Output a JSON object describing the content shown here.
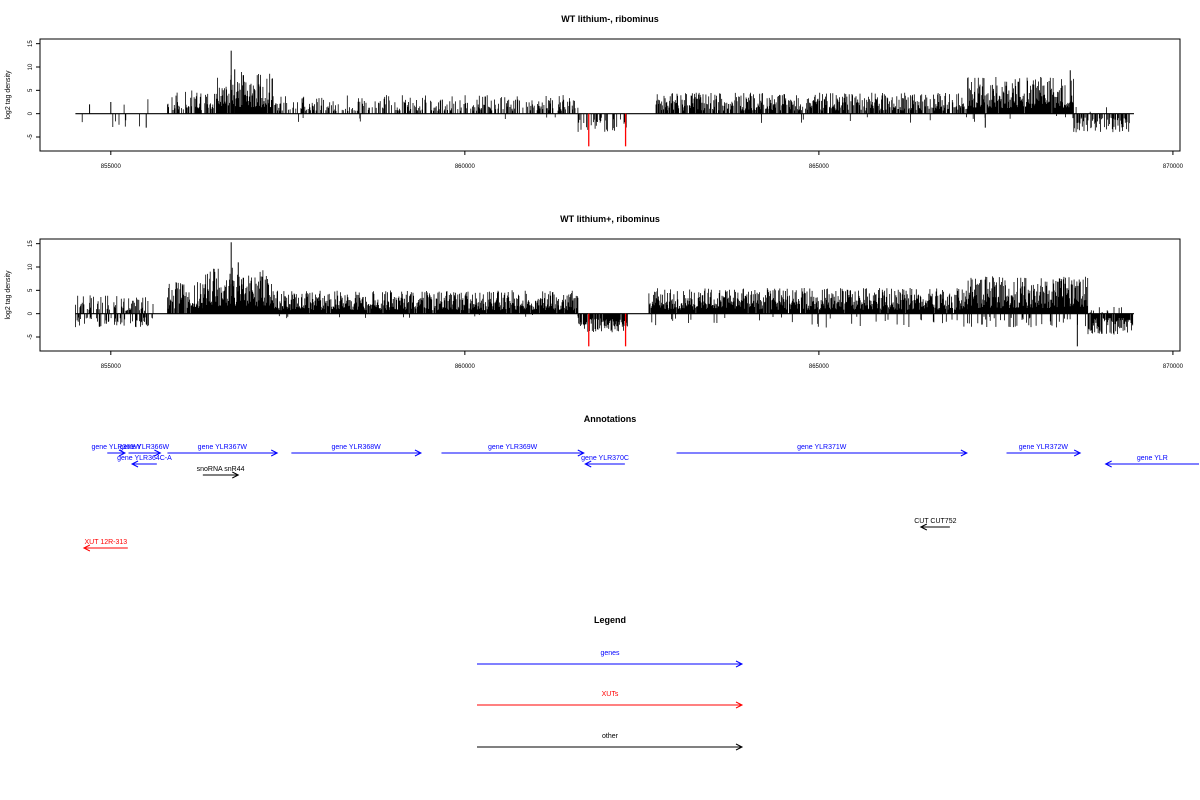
{
  "chart_data": [
    {
      "type": "bar",
      "title": "WT lithium-, ribominus",
      "ylabel": "log2 tag density",
      "xlim": [
        854000,
        870100
      ],
      "ylim": [
        -8,
        16
      ],
      "x_ticks": [
        855000,
        860000,
        865000,
        870000
      ],
      "y_ticks": [
        -5,
        0,
        5,
        10,
        15
      ],
      "x_range": [
        854500,
        869450
      ],
      "regions": [
        {
          "x": [
            854500,
            855600
          ],
          "pos_max": 3.5,
          "pos_p": 0.05,
          "neg_max": 3,
          "neg_p": 0.04
        },
        {
          "x": [
            855800,
            856500
          ],
          "pos_max": 5,
          "pos_p": 0.5,
          "neg_max": 0,
          "neg_p": 0
        },
        {
          "x": [
            856500,
            857300
          ],
          "pos_max": 9,
          "pos_p": 0.95,
          "neg_max": 0,
          "neg_p": 0
        },
        {
          "x": [
            857300,
            861600
          ],
          "pos_max": 4,
          "pos_p": 0.45,
          "neg_max": 2,
          "neg_p": 0.01
        },
        {
          "x": [
            861600,
            862300
          ],
          "pos_max": 0,
          "pos_p": 0,
          "neg_max": 4,
          "neg_p": 0.3
        },
        {
          "x": [
            862700,
            867100
          ],
          "pos_max": 4.5,
          "pos_p": 0.75,
          "neg_max": 2,
          "neg_p": 0.02
        },
        {
          "x": [
            867100,
            868600
          ],
          "pos_max": 8,
          "pos_p": 0.98,
          "neg_max": 2,
          "neg_p": 0.02
        },
        {
          "x": [
            868600,
            869400
          ],
          "pos_max": 1.5,
          "pos_p": 0.1,
          "neg_max": 4,
          "neg_p": 0.55
        }
      ],
      "spikes": [
        {
          "x": 856700,
          "y": 13.5
        },
        {
          "x": 856750,
          "y": 9.5
        },
        {
          "x": 855000,
          "y": 2.5
        },
        {
          "x": 854700,
          "y": 2
        },
        {
          "x": 855500,
          "y": -3
        },
        {
          "x": 868550,
          "y": 9.3
        },
        {
          "x": 867350,
          "y": -3
        }
      ],
      "highlights": [
        {
          "x": 861750,
          "y": -7,
          "color": "#ff0000"
        },
        {
          "x": 862270,
          "y": -7,
          "color": "#ff0000"
        }
      ]
    },
    {
      "type": "bar",
      "title": "WT lithium+, ribominus",
      "ylabel": "log2 tag density",
      "xlim": [
        854000,
        870100
      ],
      "ylim": [
        -8,
        16
      ],
      "x_ticks": [
        855000,
        860000,
        865000,
        870000
      ],
      "y_ticks": [
        -5,
        0,
        5,
        10,
        15
      ],
      "x_range": [
        854500,
        869450
      ],
      "regions": [
        {
          "x": [
            854500,
            855600
          ],
          "pos_max": 4,
          "pos_p": 0.5,
          "neg_max": 3,
          "neg_p": 0.4
        },
        {
          "x": [
            855800,
            856300
          ],
          "pos_max": 7,
          "pos_p": 0.9,
          "neg_max": 0,
          "neg_p": 0
        },
        {
          "x": [
            856300,
            857300
          ],
          "pos_max": 10,
          "pos_p": 1,
          "neg_max": 0,
          "neg_p": 0
        },
        {
          "x": [
            857300,
            861600
          ],
          "pos_max": 5,
          "pos_p": 0.95,
          "neg_max": 1,
          "neg_p": 0.02
        },
        {
          "x": [
            861600,
            862300
          ],
          "pos_max": 0,
          "pos_p": 0,
          "neg_max": 4,
          "neg_p": 0.85
        },
        {
          "x": [
            862600,
            867100
          ],
          "pos_max": 5.5,
          "pos_p": 0.95,
          "neg_max": 3,
          "neg_p": 0.05
        },
        {
          "x": [
            867100,
            868800
          ],
          "pos_max": 8,
          "pos_p": 1,
          "neg_max": 3,
          "neg_p": 0.2
        },
        {
          "x": [
            868800,
            869450
          ],
          "pos_max": 1.5,
          "pos_p": 0.1,
          "neg_max": 4.5,
          "neg_p": 0.9
        }
      ],
      "spikes": [
        {
          "x": 856700,
          "y": 15.3
        },
        {
          "x": 856800,
          "y": 11
        },
        {
          "x": 868650,
          "y": -7
        }
      ],
      "highlights": [
        {
          "x": 861750,
          "y": -7,
          "color": "#ff0000"
        },
        {
          "x": 862270,
          "y": -7,
          "color": "#ff0000"
        }
      ]
    }
  ],
  "annotations": {
    "title": "Annotations",
    "features": [
      {
        "label": "gene YLR365W",
        "start": 854950,
        "end": 855200,
        "strand": "+",
        "color": "#0000ff",
        "row": 0
      },
      {
        "label": "gene YLR366W",
        "start": 855250,
        "end": 855700,
        "strand": "+",
        "color": "#0000ff",
        "row": 0
      },
      {
        "label": "gene YLR364C-A",
        "start": 855300,
        "end": 855650,
        "strand": "-",
        "color": "#0000ff",
        "row": 1
      },
      {
        "label": "gene YLR367W",
        "start": 855800,
        "end": 857350,
        "strand": "+",
        "color": "#0000ff",
        "row": 0
      },
      {
        "label": "gene YLR368W",
        "start": 857550,
        "end": 859380,
        "strand": "+",
        "color": "#0000ff",
        "row": 0
      },
      {
        "label": "gene YLR369W",
        "start": 859670,
        "end": 861680,
        "strand": "+",
        "color": "#0000ff",
        "row": 0
      },
      {
        "label": "gene YLR370C",
        "start": 861700,
        "end": 862260,
        "strand": "-",
        "color": "#0000ff",
        "row": 1
      },
      {
        "label": "gene YLR371W",
        "start": 862990,
        "end": 867090,
        "strand": "+",
        "color": "#0000ff",
        "row": 0
      },
      {
        "label": "gene YLR372W",
        "start": 867650,
        "end": 868690,
        "strand": "+",
        "color": "#0000ff",
        "row": 0
      },
      {
        "label": "gene YLR",
        "start": 869050,
        "end": 871500,
        "strand": "-",
        "color": "#0000ff",
        "row": 1
      },
      {
        "label": "snoRNA snR44",
        "start": 856300,
        "end": 856800,
        "strand": "+",
        "color": "#000000",
        "row": 2
      },
      {
        "label": "CUT CUT752",
        "start": 866440,
        "end": 866850,
        "strand": "-",
        "color": "#000000",
        "row": 3
      },
      {
        "label": "XUT 12R-313",
        "start": 854620,
        "end": 855240,
        "strand": "-",
        "color": "#ff0000",
        "row": 4
      }
    ]
  },
  "legend": {
    "title": "Legend",
    "items": [
      {
        "label": "genes",
        "color": "#0000ff"
      },
      {
        "label": "XUTs",
        "color": "#ff0000"
      },
      {
        "label": "other",
        "color": "#000000"
      }
    ]
  }
}
